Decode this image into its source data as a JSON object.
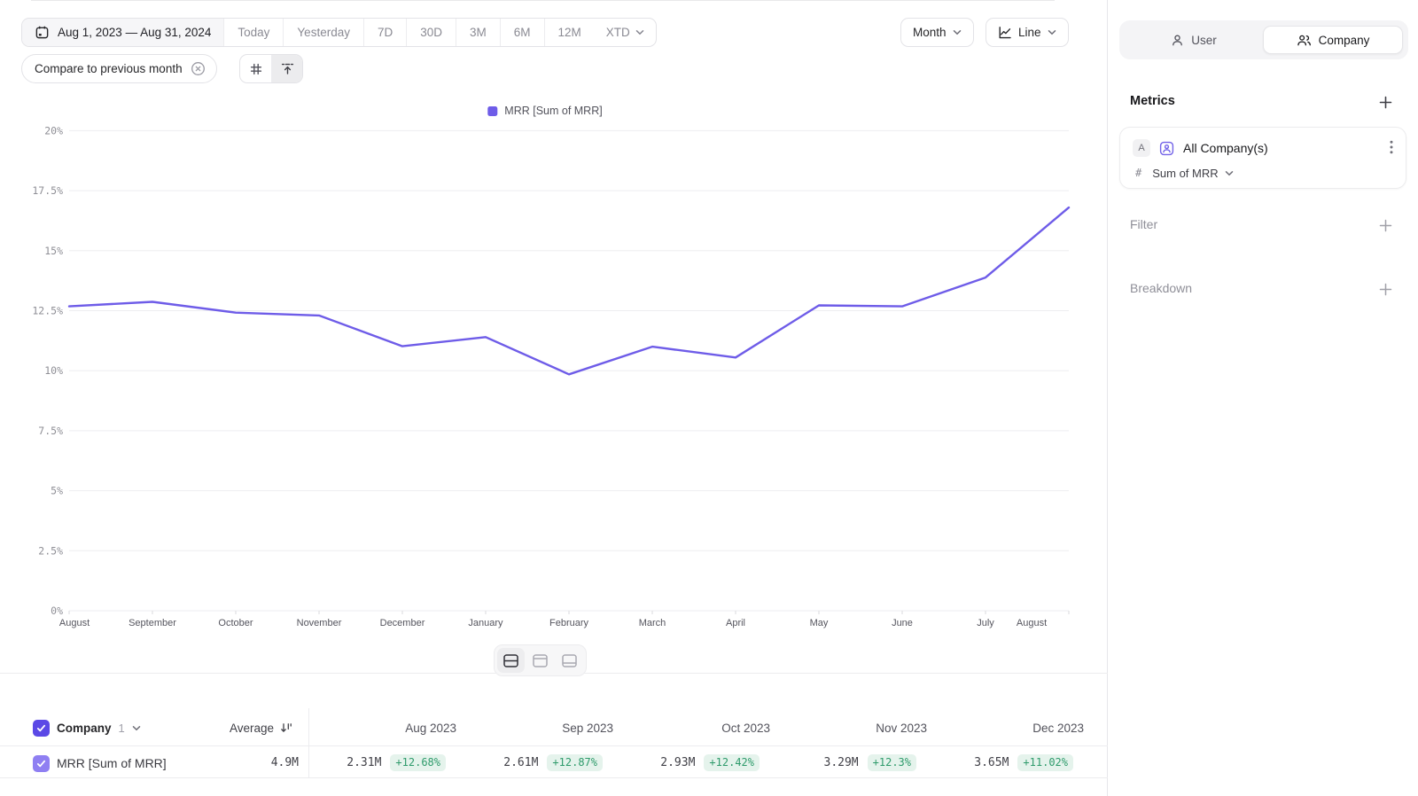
{
  "toolbar": {
    "date_range": "Aug 1, 2023 — Aug 31, 2024",
    "quick_ranges": [
      "Today",
      "Yesterday",
      "7D",
      "30D",
      "3M",
      "6M",
      "12M"
    ],
    "xtd_label": "XTD",
    "granularity_label": "Month",
    "chart_type_label": "Line",
    "compare_label": "Compare to previous month"
  },
  "legend_label": "MRR [Sum of MRR]",
  "chart_data": {
    "type": "line",
    "title": "",
    "xlabel": "",
    "ylabel": "",
    "grid": true,
    "legend_position": "top-center",
    "x": [
      "August",
      "September",
      "October",
      "November",
      "December",
      "January",
      "February",
      "March",
      "April",
      "May",
      "June",
      "July",
      "August"
    ],
    "series": [
      {
        "name": "MRR [Sum of MRR]",
        "color": "#6e5ce8",
        "values": [
          12.68,
          12.87,
          12.42,
          12.3,
          11.02,
          11.4,
          9.85,
          11.0,
          10.55,
          12.72,
          12.68,
          13.88,
          16.8
        ]
      }
    ],
    "ylim": [
      0,
      20
    ],
    "yticks": [
      0,
      2.5,
      5,
      7.5,
      10,
      12.5,
      15,
      17.5,
      20
    ],
    "ytick_labels": [
      "0%",
      "2.5%",
      "5%",
      "7.5%",
      "10%",
      "12.5%",
      "15%",
      "17.5%",
      "20%"
    ]
  },
  "sidebar": {
    "toggle": {
      "user_label": "User",
      "company_label": "Company"
    },
    "metrics_title": "Metrics",
    "metric_card": {
      "badge": "A",
      "name": "All Company(s)",
      "agg_prefix": "#",
      "aggregation": "Sum of MRR"
    },
    "filter_label": "Filter",
    "breakdown_label": "Breakdown"
  },
  "table": {
    "entity_header": "Company",
    "entity_count": "1",
    "average_header": "Average",
    "row_label": "MRR [Sum of MRR]",
    "average_value": "4.9M",
    "columns": [
      {
        "label": "Aug 2023",
        "value": "2.31M",
        "delta": "+12.68%"
      },
      {
        "label": "Sep 2023",
        "value": "2.61M",
        "delta": "+12.87%"
      },
      {
        "label": "Oct 2023",
        "value": "2.93M",
        "delta": "+12.42%"
      },
      {
        "label": "Nov 2023",
        "value": "3.29M",
        "delta": "+12.3%"
      },
      {
        "label": "Dec 2023",
        "value": "3.65M",
        "delta": "+11.02%"
      }
    ]
  },
  "colors": {
    "line": "#6e5ce8",
    "checkbox_dark": "#5b49e6",
    "checkbox_light": "#8f7ff2",
    "badge_bg": "#e5f3ec",
    "badge_text": "#2e9b6b",
    "gridline": "#ededf0"
  }
}
